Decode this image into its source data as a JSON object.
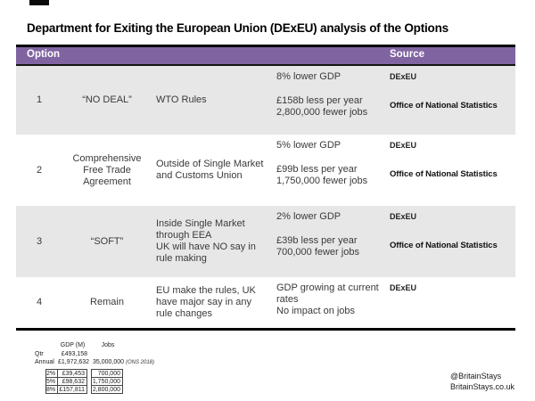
{
  "title": "Department for Exiting the European Union (DExEU) analysis of the Options",
  "header": {
    "option_label": "Option",
    "source_label": "Source"
  },
  "options": [
    {
      "num": "1",
      "name": "“NO DEAL”",
      "description": "WTO Rules",
      "impact_primary": "8% lower GDP",
      "impact_secondary": "£158b less per year\n2,800,000 fewer jobs",
      "source_primary": "DExEU",
      "source_secondary": "Office of National Statistics"
    },
    {
      "num": "2",
      "name": "Comprehensive Free Trade Agreement",
      "description": "Outside of Single Market and Customs Union",
      "impact_primary": "5% lower GDP",
      "impact_secondary": "£99b less per year\n1,750,000 fewer jobs",
      "source_primary": "DExEU",
      "source_secondary": "Office of National Statistics"
    },
    {
      "num": "3",
      "name": "“SOFT”",
      "description": "Inside Single Market through EEA\nUK will have NO say in rule making",
      "impact_primary": "2% lower GDP",
      "impact_secondary": "£39b less per year\n700,000 fewer jobs",
      "source_primary": "DExEU",
      "source_secondary": "Office of National Statistics"
    },
    {
      "num": "4",
      "name": "Remain",
      "description": "EU make the rules, UK have major say in any rule changes",
      "impact_primary": "GDP growing at current rates",
      "impact_secondary": "No impact on jobs",
      "source_primary": "DExEU",
      "source_secondary": ""
    }
  ],
  "mini_table": {
    "gdp_header": "GDP (M)",
    "jobs_header": "Jobs",
    "qtr_label": "Qtr",
    "qtr_gdp": "£493,158",
    "annual_label": "Annual",
    "annual_gdp": "£1,972,632",
    "annual_jobs": "35,000,000",
    "annual_note": "(ONS 2018)",
    "boxed_rows": [
      {
        "label": "2%",
        "gdp": "£39,453",
        "jobs": "700,000"
      },
      {
        "label": "5%",
        "gdp": "£98,632",
        "jobs": "1,750,000"
      },
      {
        "label": "8%",
        "gdp": "£157,811",
        "jobs": "2,800,000"
      }
    ]
  },
  "footer": {
    "handle": "@BritainStays",
    "website": "BritainStays.co.uk"
  },
  "colors": {
    "header_bg": "#8064A2",
    "row_alt_bg": "#E7E7E7",
    "border": "#000000"
  }
}
